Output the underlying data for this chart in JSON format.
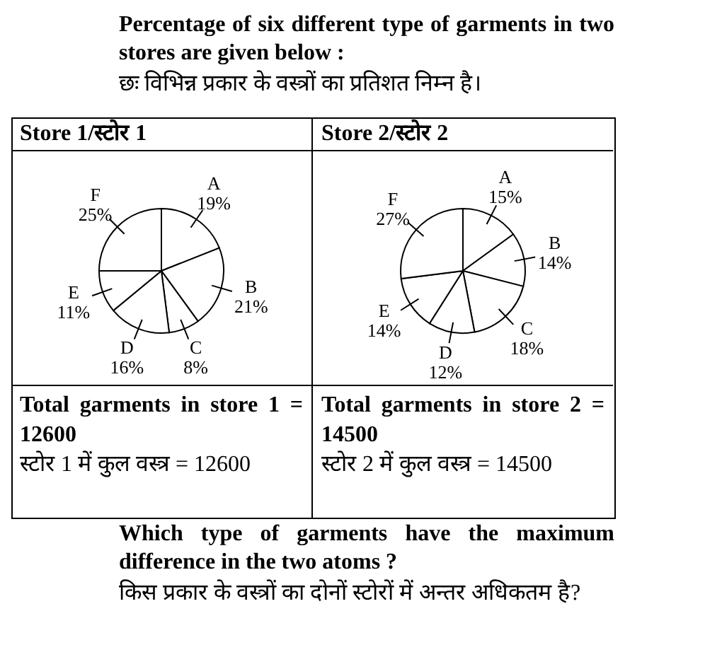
{
  "chart_data": [
    {
      "type": "other",
      "annotations": [
        "Percentage of six different type of garments in two stores are given below :",
        "छः विभिन्न प्रकार के वस्त्रों का प्रतिशत निम्न है।"
      ]
    },
    {
      "type": "pie",
      "title": "Store 1/स्टोर 1",
      "categories": [
        "A",
        "B",
        "C",
        "D",
        "E",
        "F"
      ],
      "values": [
        19,
        21,
        8,
        16,
        11,
        25
      ],
      "value_labels": [
        "19%",
        "21%",
        "8%",
        "16%",
        "11%",
        "25%"
      ],
      "colors": [
        "#ffffff",
        "#ffffff",
        "#ffffff",
        "#ffffff",
        "#ffffff",
        "#ffffff"
      ],
      "annotations": [
        "Total garments in store 1 = 12600",
        "स्टोर 1 में कुल वस्त्र = 12600"
      ]
    },
    {
      "type": "pie",
      "title": "Store 2/स्टोर 2",
      "categories": [
        "A",
        "B",
        "C",
        "D",
        "E",
        "F"
      ],
      "values": [
        15,
        14,
        18,
        12,
        14,
        27
      ],
      "value_labels": [
        "15%",
        "14%",
        "18%",
        "12%",
        "14%",
        "27%"
      ],
      "colors": [
        "#ffffff",
        "#ffffff",
        "#ffffff",
        "#ffffff",
        "#ffffff",
        "#ffffff"
      ],
      "annotations": [
        "Total garments in store 2 = 14500",
        "स्टोर 2 में कुल वस्त्र = 14500"
      ]
    },
    {
      "type": "other",
      "annotations": [
        "Which type of garments have the maximum difference in the two atoms ?",
        "किस प्रकार के वस्त्रों का दोनों स्टोरों में अन्तर अधिकतम है?"
      ]
    }
  ]
}
